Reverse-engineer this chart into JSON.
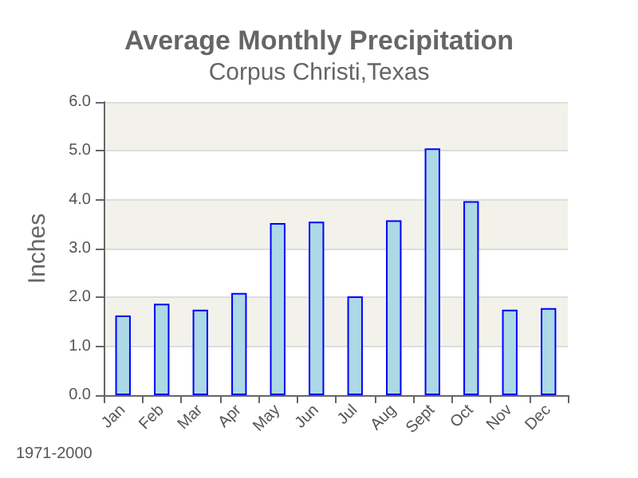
{
  "chart_data": {
    "type": "bar",
    "title": "Average Monthly Precipitation",
    "subtitle": "Corpus Christi,Texas",
    "ylabel": "Inches",
    "categories": [
      "Jan",
      "Feb",
      "Mar",
      "Apr",
      "May",
      "Jun",
      "Jul",
      "Aug",
      "Sept",
      "Oct",
      "Nov",
      "Dec"
    ],
    "values": [
      1.63,
      1.87,
      1.75,
      2.09,
      3.52,
      3.55,
      2.02,
      3.58,
      5.05,
      3.97,
      1.75,
      1.78
    ],
    "color": "#add8e6",
    "ylim": [
      0,
      6
    ],
    "yticks": [
      {
        "value": 0,
        "label": "0.0"
      },
      {
        "value": 1,
        "label": "1.0"
      },
      {
        "value": 2,
        "label": "2.0"
      },
      {
        "value": 3,
        "label": "3.0"
      },
      {
        "value": 4,
        "label": "4.0"
      },
      {
        "value": 5,
        "label": "5.0"
      },
      {
        "value": 6,
        "label": "6.0"
      }
    ],
    "grid": "y",
    "annotations": [
      "1971-2000"
    ]
  }
}
